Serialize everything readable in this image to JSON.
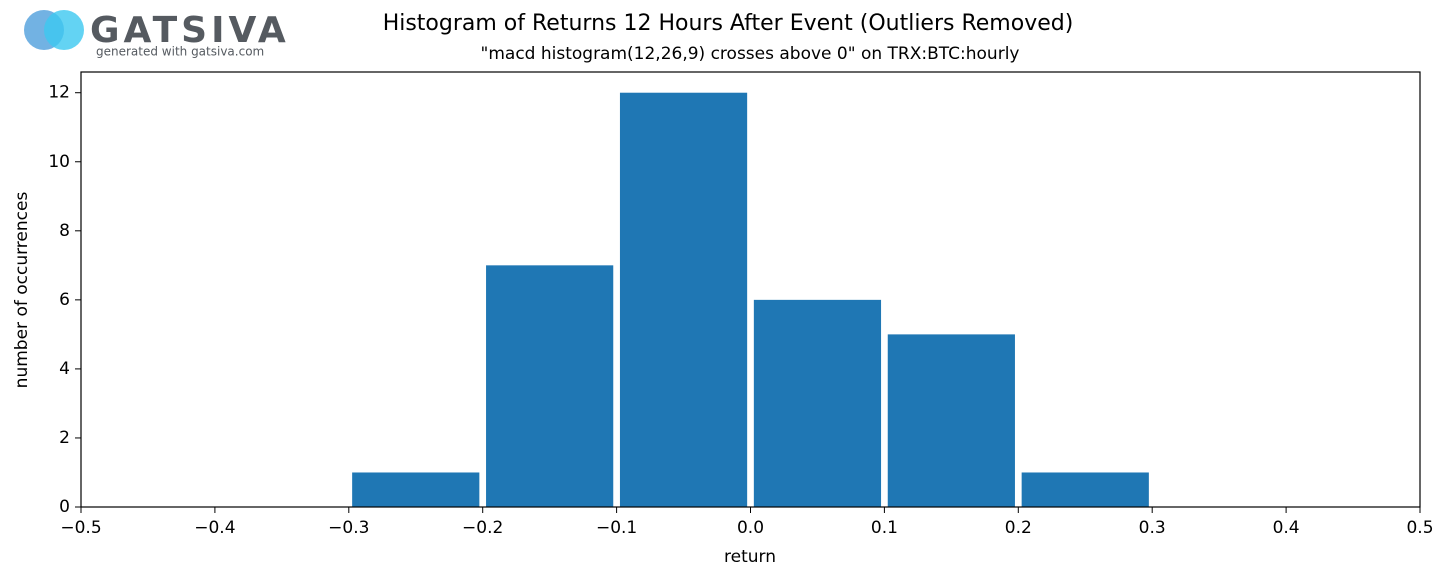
{
  "logo": {
    "name": "GATSIVA",
    "tagline": "generated with gatsiva.com"
  },
  "chart_data": {
    "type": "histogram",
    "title": "Histogram of Returns 12 Hours After Event (Outliers Removed)",
    "subtitle": "\"macd histogram(12,26,9) crosses above 0\" on TRX:BTC:hourly",
    "x_label": "return",
    "y_label": "number of occurrences",
    "bins": [
      -0.3,
      -0.2,
      -0.1,
      0,
      0.1,
      0.2,
      0.3
    ],
    "values": [
      1,
      7,
      12,
      6,
      5,
      1
    ],
    "color": "#1f77b4",
    "xlim": [
      -0.5,
      0.5
    ],
    "xticks": [
      {
        "value": -0.5,
        "label": "−0.5"
      },
      {
        "value": -0.4,
        "label": "−0.4"
      },
      {
        "value": -0.3,
        "label": "−0.3"
      },
      {
        "value": -0.2,
        "label": "−0.2"
      },
      {
        "value": -0.1,
        "label": "−0.1"
      },
      {
        "value": 0,
        "label": "0.0"
      },
      0.1,
      0.2,
      0.3,
      0.4,
      0.5
    ],
    "ylim": [
      0,
      12.6
    ],
    "yticks": [
      0,
      2,
      4,
      6,
      8,
      10,
      12
    ],
    "grid": false
  }
}
